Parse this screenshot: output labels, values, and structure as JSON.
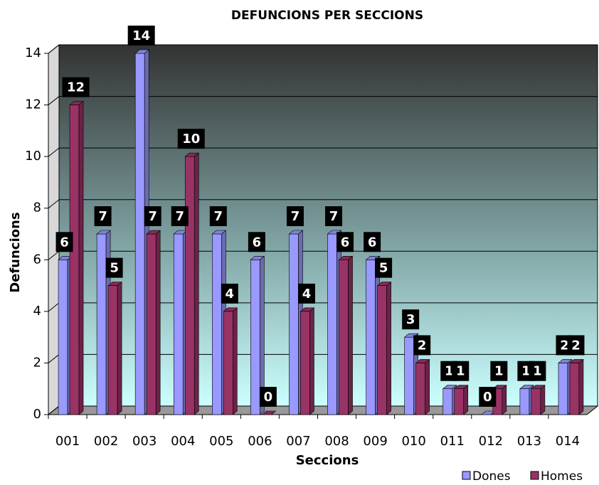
{
  "chart_data": {
    "type": "bar",
    "title": "DEFUNCIONS PER SECCIONS",
    "x_label": "Seccions",
    "y_label": "Defuncions",
    "categories": [
      "001",
      "002",
      "003",
      "004",
      "005",
      "006",
      "007",
      "008",
      "009",
      "010",
      "011",
      "012",
      "013",
      "014"
    ],
    "series": [
      {
        "name": "Dones",
        "color": "#9999ff",
        "values": [
          6,
          7,
          14,
          7,
          7,
          6,
          7,
          7,
          6,
          3,
          1,
          0,
          1,
          2
        ]
      },
      {
        "name": "Homes",
        "color": "#993366",
        "values": [
          12,
          5,
          7,
          10,
          4,
          0,
          4,
          6,
          5,
          2,
          1,
          1,
          1,
          2
        ]
      }
    ],
    "ylim": [
      0,
      14
    ],
    "yticks": [
      0,
      2,
      4,
      6,
      8,
      10,
      12,
      14
    ],
    "grid": true,
    "legend": "bottom-right"
  }
}
